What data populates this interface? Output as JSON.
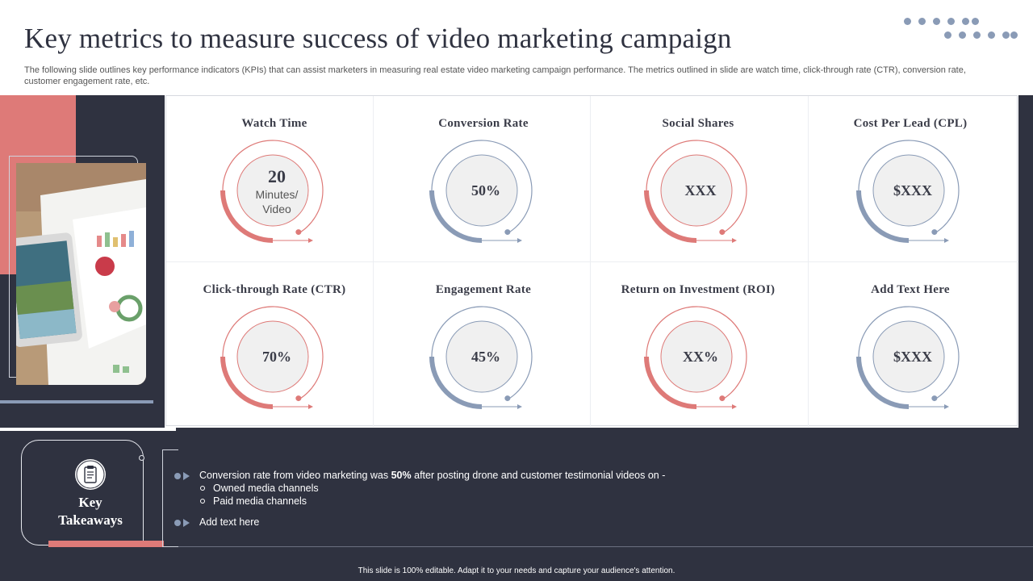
{
  "header": {
    "title": "Key metrics to measure success of video marketing campaign",
    "subtitle": "The following slide outlines key performance indicators (KPIs) that can assist marketers in measuring real estate video marketing campaign performance. The metrics outlined in slide are watch time, click-through rate (CTR), conversion rate, customer engagement rate, etc."
  },
  "colors": {
    "dark": "#2f3240",
    "pink": "#de7a78",
    "blue": "#8a9bb6"
  },
  "metrics": [
    {
      "label": "Watch Time",
      "value": "20",
      "value_sub_1": "Minutes/",
      "value_sub_2": "Video",
      "accent": "pink"
    },
    {
      "label": "Conversion Rate",
      "value": "50%",
      "accent": "blue"
    },
    {
      "label": "Social Shares",
      "value": "XXX",
      "accent": "pink"
    },
    {
      "label": "Cost Per Lead (CPL)",
      "value": "$XXX",
      "accent": "blue"
    },
    {
      "label": "Click-through  Rate (CTR)",
      "value": "70%",
      "accent": "pink"
    },
    {
      "label": "Engagement Rate",
      "value": "45%",
      "accent": "blue"
    },
    {
      "label": "Return on Investment (ROI)",
      "value": "XX%",
      "accent": "pink"
    },
    {
      "label": "Add Text  Here",
      "value": "$XXX",
      "accent": "blue"
    }
  ],
  "takeaways": {
    "title_line1": "Key",
    "title_line2": "Takeaways",
    "icon": "clipboard-icon",
    "bullet1_pre": "Conversion  rate from  video  marketing  was ",
    "bullet1_bold": "50%",
    "bullet1_post": "  after  posting  drone  and  customer  testimonial  videos  on -",
    "sub_items": [
      "Owned  media channels",
      "Paid media channels"
    ],
    "bullet2": "Add text here"
  },
  "footer": "This slide is 100% editable. Adapt it to your needs and capture your audience's attention."
}
